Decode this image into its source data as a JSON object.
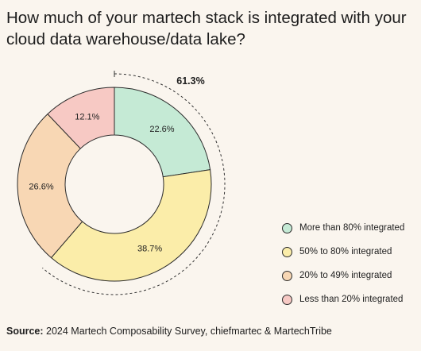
{
  "title": "How much of your martech stack is integrated with your cloud data warehouse/data lake?",
  "chart_data": {
    "type": "pie",
    "style": "donut",
    "title": "How much of your martech stack is integrated with your cloud data warehouse/data lake?",
    "series": [
      {
        "name": "More than 80% integrated",
        "value": 22.6,
        "label": "22.6%",
        "color": "#c5ead5"
      },
      {
        "name": "50% to 80% integrated",
        "value": 38.7,
        "label": "38.7%",
        "color": "#fbeda9"
      },
      {
        "name": "20% to 49% integrated",
        "value": 26.6,
        "label": "26.6%",
        "color": "#f8d7b4"
      },
      {
        "name": "Less than 20% integrated",
        "value": 12.1,
        "label": "12.1%",
        "color": "#f7c9c4"
      }
    ],
    "annotation": {
      "label": "61.3%",
      "value": 61.3,
      "spans": [
        "More than 80% integrated",
        "50% to 80% integrated"
      ]
    },
    "legend_position": "right"
  },
  "legend": {
    "items": [
      {
        "label": "More than 80% integrated",
        "color": "#c5ead5"
      },
      {
        "label": "50% to 80% integrated",
        "color": "#fbeda9"
      },
      {
        "label": "20% to 49% integrated",
        "color": "#f8d7b4"
      },
      {
        "label": "Less than 20% integrated",
        "color": "#f7c9c4"
      }
    ]
  },
  "source": {
    "label": "Source:",
    "text": " 2024 Martech Composability Survey, chiefmartec & MartechTribe"
  }
}
